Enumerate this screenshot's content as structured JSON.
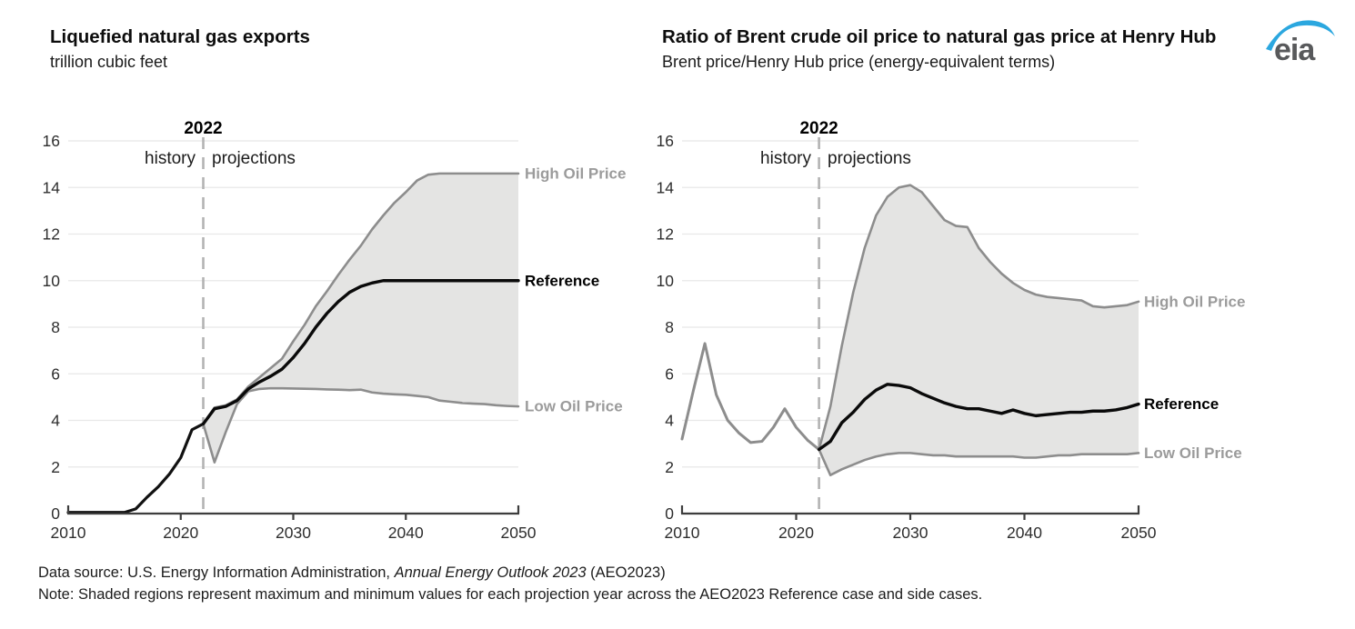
{
  "logo": {
    "text": "eia",
    "text_color": "#58595b",
    "swoosh_color": "#2ba7df"
  },
  "footer": {
    "source_prefix": "Data source: U.S. Energy Information Administration, ",
    "source_italic": "Annual Energy Outlook 2023",
    "source_suffix": " (AEO2023)",
    "note": "Note: Shaded regions represent maximum and minimum values for each projection year across the AEO2023 Reference case and side cases."
  },
  "chart_data": [
    {
      "type": "line",
      "title": "Liquefied natural gas exports",
      "subtitle": "trillion cubic feet",
      "ylabel": "trillion cubic feet",
      "xlim": [
        2010,
        2050
      ],
      "ylim": [
        0,
        16
      ],
      "xticks": [
        2010,
        2020,
        2030,
        2040,
        2050
      ],
      "yticks": [
        0,
        2,
        4,
        6,
        8,
        10,
        12,
        14,
        16
      ],
      "grid": true,
      "grid_color": "#e8e8e8",
      "divider_year": 2022,
      "annotations": {
        "year": "2022",
        "history": "history",
        "projections": "projections"
      },
      "band": {
        "high": "High Oil Price",
        "low": "Low Oil Price",
        "fill": "#e4e4e3"
      },
      "series": [
        {
          "name": "History",
          "color": "#111111",
          "width": 3.2,
          "start_year": 2010,
          "values": [
            0.05,
            0.05,
            0.05,
            0.05,
            0.05,
            0.05,
            0.2,
            0.7,
            1.15,
            1.7,
            2.4,
            3.6,
            3.85
          ]
        },
        {
          "name": "High Oil Price",
          "color": "#8d8d8d",
          "width": 2.6,
          "start_year": 2022,
          "values": [
            3.85,
            4.55,
            4.65,
            4.9,
            5.45,
            5.85,
            6.25,
            6.65,
            7.4,
            8.1,
            8.9,
            9.55,
            10.25,
            10.9,
            11.5,
            12.2,
            12.8,
            13.35,
            13.8,
            14.3,
            14.55,
            14.6,
            14.6,
            14.6,
            14.6,
            14.6,
            14.6,
            14.6,
            14.6
          ]
        },
        {
          "name": "Low Oil Price",
          "color": "#8d8d8d",
          "width": 2.6,
          "start_year": 2022,
          "values": [
            3.85,
            2.2,
            3.5,
            4.7,
            5.25,
            5.35,
            5.38,
            5.38,
            5.37,
            5.36,
            5.35,
            5.33,
            5.32,
            5.3,
            5.32,
            5.2,
            5.15,
            5.12,
            5.1,
            5.05,
            5.0,
            4.85,
            4.8,
            4.75,
            4.72,
            4.7,
            4.65,
            4.62,
            4.6
          ]
        },
        {
          "name": "Reference",
          "color": "#0a0a0a",
          "width": 3.4,
          "start_year": 2022,
          "values": [
            3.85,
            4.5,
            4.6,
            4.85,
            5.35,
            5.65,
            5.9,
            6.2,
            6.7,
            7.3,
            8.0,
            8.6,
            9.1,
            9.5,
            9.75,
            9.9,
            10.0,
            10.0,
            10.0,
            10.0,
            10.0,
            10.0,
            10.0,
            10.0,
            10.0,
            10.0,
            10.0,
            10.0,
            10.0
          ]
        }
      ],
      "line_labels": [
        {
          "text": "High Oil Price",
          "value": 14.6,
          "color": "#9b9b9b"
        },
        {
          "text": "Reference",
          "value": 10.0,
          "color": "#000000"
        },
        {
          "text": "Low Oil Price",
          "value": 4.6,
          "color": "#9b9b9b"
        }
      ]
    },
    {
      "type": "line",
      "title": "Ratio of Brent crude oil price to natural gas price at Henry Hub",
      "subtitle": "Brent price/Henry Hub price (energy-equivalent terms)",
      "ylabel": "Brent price/Henry Hub price (energy-equivalent terms)",
      "xlim": [
        2010,
        2050
      ],
      "ylim": [
        0,
        16
      ],
      "xticks": [
        2010,
        2020,
        2030,
        2040,
        2050
      ],
      "yticks": [
        0,
        2,
        4,
        6,
        8,
        10,
        12,
        14,
        16
      ],
      "grid": true,
      "grid_color": "#e8e8e8",
      "divider_year": 2022,
      "annotations": {
        "year": "2022",
        "history": "history",
        "projections": "projections"
      },
      "band": {
        "high": "High Oil Price",
        "low": "Low Oil Price",
        "fill": "#e4e4e3"
      },
      "series": [
        {
          "name": "History",
          "color": "#8d8d8d",
          "width": 3.0,
          "start_year": 2010,
          "values": [
            3.2,
            5.3,
            7.3,
            5.1,
            4.0,
            3.45,
            3.05,
            3.1,
            3.7,
            4.5,
            3.7,
            3.15,
            2.75
          ]
        },
        {
          "name": "High Oil Price",
          "color": "#8d8d8d",
          "width": 2.6,
          "start_year": 2022,
          "values": [
            2.75,
            4.6,
            7.2,
            9.5,
            11.4,
            12.8,
            13.6,
            14.0,
            14.1,
            13.8,
            13.2,
            12.6,
            12.35,
            12.3,
            11.4,
            10.8,
            10.3,
            9.9,
            9.6,
            9.4,
            9.3,
            9.25,
            9.2,
            9.15,
            8.9,
            8.85,
            8.9,
            8.95,
            9.1
          ]
        },
        {
          "name": "Low Oil Price",
          "color": "#8d8d8d",
          "width": 2.6,
          "start_year": 2022,
          "values": [
            2.75,
            1.65,
            1.9,
            2.1,
            2.3,
            2.45,
            2.55,
            2.6,
            2.6,
            2.55,
            2.5,
            2.5,
            2.45,
            2.45,
            2.45,
            2.45,
            2.45,
            2.45,
            2.4,
            2.4,
            2.45,
            2.5,
            2.5,
            2.55,
            2.55,
            2.55,
            2.55,
            2.55,
            2.6
          ]
        },
        {
          "name": "Reference",
          "color": "#0a0a0a",
          "width": 3.4,
          "start_year": 2022,
          "values": [
            2.75,
            3.1,
            3.9,
            4.35,
            4.9,
            5.3,
            5.55,
            5.5,
            5.4,
            5.15,
            4.95,
            4.75,
            4.6,
            4.5,
            4.5,
            4.4,
            4.3,
            4.45,
            4.3,
            4.2,
            4.25,
            4.3,
            4.35,
            4.35,
            4.4,
            4.4,
            4.45,
            4.55,
            4.7
          ]
        }
      ],
      "line_labels": [
        {
          "text": "High Oil Price",
          "value": 9.1,
          "color": "#9b9b9b"
        },
        {
          "text": "Reference",
          "value": 4.7,
          "color": "#000000"
        },
        {
          "text": "Low Oil Price",
          "value": 2.6,
          "color": "#9b9b9b"
        }
      ]
    }
  ]
}
